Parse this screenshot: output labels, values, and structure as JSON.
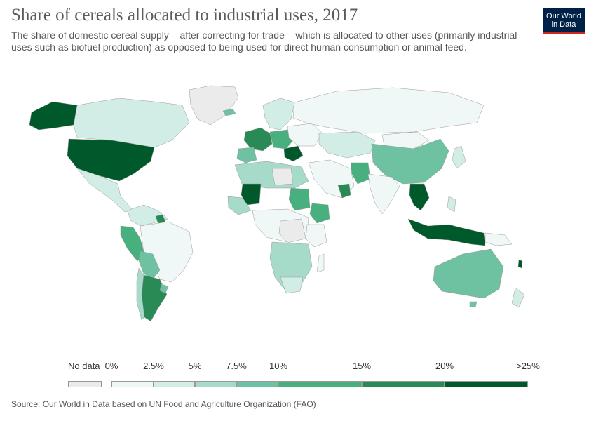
{
  "title": "Share of cereals allocated to industrial uses, 2017",
  "subtitle": "The share of domestic cereal supply – after correcting for trade – which is allocated to other uses (primarily industrial uses such as biofuel production) as opposed to being used for direct human consumption or animal feed.",
  "logo": {
    "line1": "Our World",
    "line2": "in Data"
  },
  "legend": {
    "no_data_label": "No data",
    "no_data_color": "#ebebeb",
    "bins": [
      {
        "from_label": "0%",
        "to_label": "2.5%",
        "color": "#eff8f6"
      },
      {
        "from_label": "2.5%",
        "to_label": "5%",
        "color": "#d1ede5"
      },
      {
        "from_label": "5%",
        "to_label": "7.5%",
        "color": "#a7dbc9"
      },
      {
        "from_label": "7.5%",
        "to_label": "10%",
        "color": "#6fc2a1"
      },
      {
        "from_label": "10%",
        "to_label": "15%",
        "color": "#48b07e"
      },
      {
        "from_label": "15%",
        "to_label": "20%",
        "color": "#2a8a55"
      },
      {
        "from_label": "20%",
        "to_label": ">25%",
        "color": "#00592a"
      }
    ]
  },
  "source": "Source: Our World in Data based on UN Food and Agriculture Organization (FAO)"
}
